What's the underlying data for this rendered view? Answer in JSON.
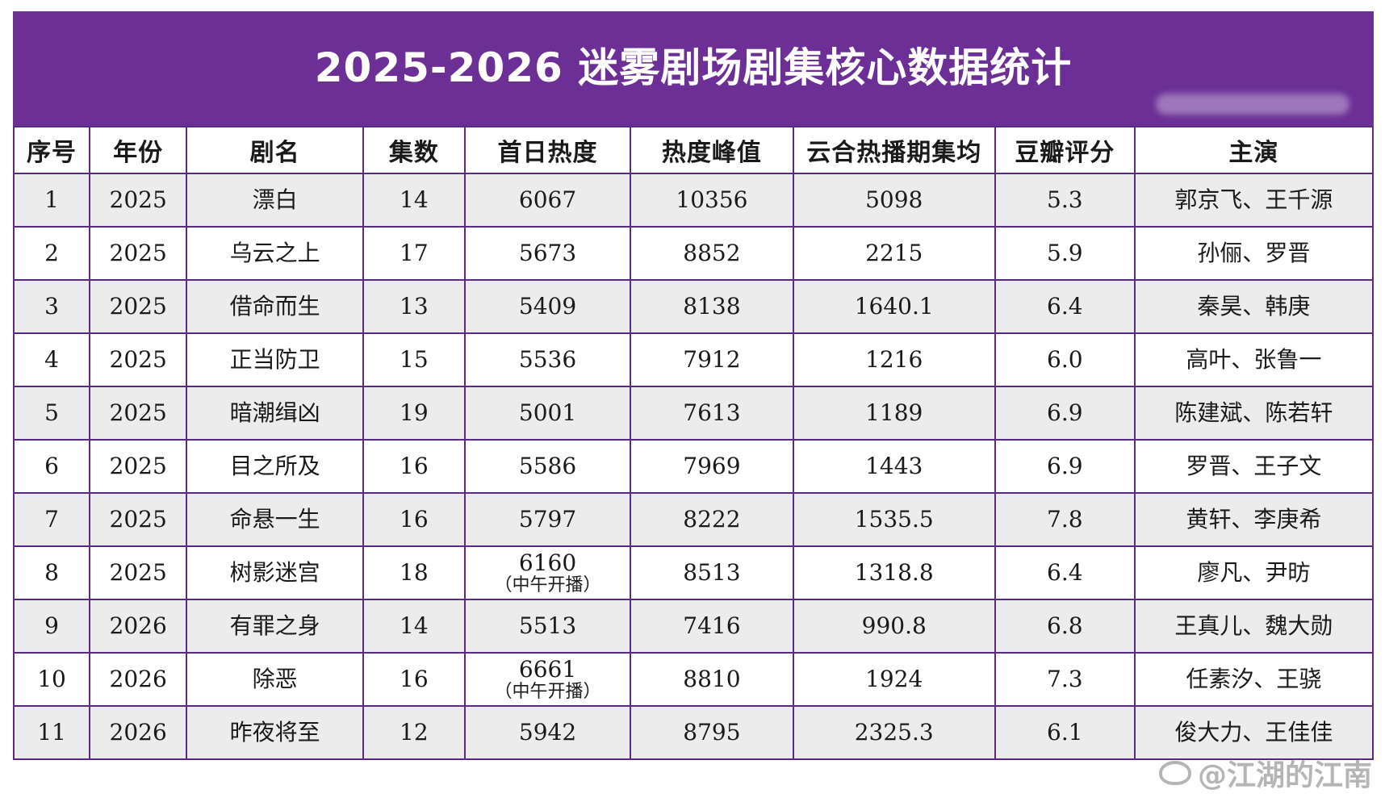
{
  "title": "2025-2026 迷雾剧场剧集核心数据统计",
  "headers": [
    "序号",
    "年份",
    "剧名",
    "集数",
    "首日热度",
    "热度峰值",
    "云合热播期集均",
    "豆瓣评分",
    "主演"
  ],
  "rows": [
    {
      "no": "1",
      "year": "2025",
      "name": "漂白",
      "episodes": "14",
      "first_day": "6067",
      "first_day_note": "",
      "peak": "10356",
      "yunhe": "5098",
      "douban": "5.3",
      "cast": "郭京飞、王千源"
    },
    {
      "no": "2",
      "year": "2025",
      "name": "乌云之上",
      "episodes": "17",
      "first_day": "5673",
      "first_day_note": "",
      "peak": "8852",
      "yunhe": "2215",
      "douban": "5.9",
      "cast": "孙俪、罗晋"
    },
    {
      "no": "3",
      "year": "2025",
      "name": "借命而生",
      "episodes": "13",
      "first_day": "5409",
      "first_day_note": "",
      "peak": "8138",
      "yunhe": "1640.1",
      "douban": "6.4",
      "cast": "秦昊、韩庚"
    },
    {
      "no": "4",
      "year": "2025",
      "name": "正当防卫",
      "episodes": "15",
      "first_day": "5536",
      "first_day_note": "",
      "peak": "7912",
      "yunhe": "1216",
      "douban": "6.0",
      "cast": "高叶、张鲁一"
    },
    {
      "no": "5",
      "year": "2025",
      "name": "暗潮缉凶",
      "episodes": "19",
      "first_day": "5001",
      "first_day_note": "",
      "peak": "7613",
      "yunhe": "1189",
      "douban": "6.9",
      "cast": "陈建斌、陈若轩"
    },
    {
      "no": "6",
      "year": "2025",
      "name": "目之所及",
      "episodes": "16",
      "first_day": "5586",
      "first_day_note": "",
      "peak": "7969",
      "yunhe": "1443",
      "douban": "6.9",
      "cast": "罗晋、王子文"
    },
    {
      "no": "7",
      "year": "2025",
      "name": "命悬一生",
      "episodes": "16",
      "first_day": "5797",
      "first_day_note": "",
      "peak": "8222",
      "yunhe": "1535.5",
      "douban": "7.8",
      "cast": "黄轩、李庚希"
    },
    {
      "no": "8",
      "year": "2025",
      "name": "树影迷宫",
      "episodes": "18",
      "first_day": "6160",
      "first_day_note": "（中午开播）",
      "peak": "8513",
      "yunhe": "1318.8",
      "douban": "6.4",
      "cast": "廖凡、尹昉"
    },
    {
      "no": "9",
      "year": "2026",
      "name": "有罪之身",
      "episodes": "14",
      "first_day": "5513",
      "first_day_note": "",
      "peak": "7416",
      "yunhe": "990.8",
      "douban": "6.8",
      "cast": "王真儿、魏大勋"
    },
    {
      "no": "10",
      "year": "2026",
      "name": "除恶",
      "episodes": "16",
      "first_day": "6661",
      "first_day_note": "（中午开播）",
      "peak": "8810",
      "yunhe": "1924",
      "douban": "7.3",
      "cast": "任素汐、王骁"
    },
    {
      "no": "11",
      "year": "2026",
      "name": "昨夜将至",
      "episodes": "12",
      "first_day": "5942",
      "first_day_note": "",
      "peak": "8795",
      "yunhe": "2325.3",
      "douban": "6.1",
      "cast": "俊大力、王佳佳"
    }
  ],
  "watermark": "@江湖的江南"
}
